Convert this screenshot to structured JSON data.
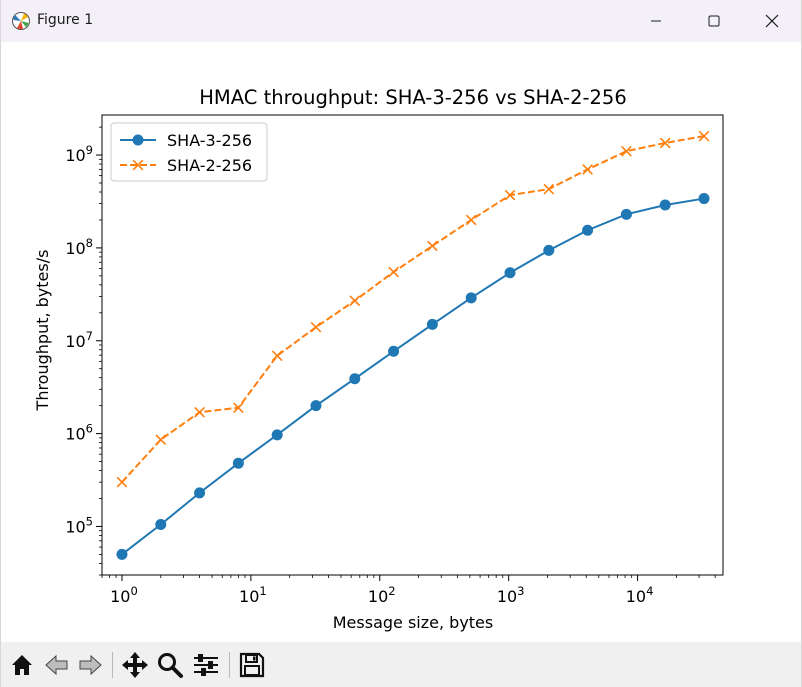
{
  "window": {
    "title": "Figure 1",
    "controls": [
      "minimize",
      "maximize",
      "close"
    ]
  },
  "toolbar": {
    "icons": [
      "home-icon",
      "back-icon",
      "forward-icon",
      "pan-icon",
      "zoom-icon",
      "configure-subplots-icon",
      "save-icon"
    ]
  },
  "chart_data": {
    "type": "line",
    "title": "HMAC throughput: SHA-3-256 vs SHA-2-256",
    "xlabel": "Message size, bytes",
    "ylabel": "Throughput, bytes/s",
    "xscale": "log",
    "yscale": "log",
    "xlim": [
      0.7,
      46000
    ],
    "ylim": [
      30000,
      2700000000
    ],
    "xticks": [
      {
        "value": 1,
        "base": "10",
        "exp": "0"
      },
      {
        "value": 10,
        "base": "10",
        "exp": "1"
      },
      {
        "value": 100,
        "base": "10",
        "exp": "2"
      },
      {
        "value": 1000,
        "base": "10",
        "exp": "3"
      },
      {
        "value": 10000,
        "base": "10",
        "exp": "4"
      }
    ],
    "yticks": [
      {
        "value": 100000,
        "base": "10",
        "exp": "5"
      },
      {
        "value": 1000000,
        "base": "10",
        "exp": "6"
      },
      {
        "value": 10000000,
        "base": "10",
        "exp": "7"
      },
      {
        "value": 100000000,
        "base": "10",
        "exp": "8"
      },
      {
        "value": 1000000000,
        "base": "10",
        "exp": "9"
      }
    ],
    "grid": false,
    "legend_position": "upper-left",
    "x": [
      1,
      2,
      4,
      8,
      16,
      32,
      64,
      128,
      256,
      512,
      1024,
      2048,
      4096,
      8192,
      16384,
      32768
    ],
    "series": [
      {
        "name": "SHA-3-256",
        "color": "#1f77b4",
        "linestyle": "solid",
        "marker": "circle",
        "values": [
          50000,
          105000,
          230000,
          480000,
          970000,
          2000000,
          3900000,
          7700000,
          15000000,
          29000000,
          54000000,
          94000000,
          155000000,
          230000000,
          290000000,
          340000000
        ]
      },
      {
        "name": "SHA-2-256",
        "color": "#ff7f0e",
        "linestyle": "dashed",
        "marker": "x",
        "values": [
          300000,
          860000,
          1700000,
          1900000,
          6900000,
          14000000,
          27000000,
          55000000,
          105000000,
          200000000,
          370000000,
          430000000,
          700000000,
          1100000000,
          1350000000,
          1600000000
        ]
      }
    ]
  }
}
